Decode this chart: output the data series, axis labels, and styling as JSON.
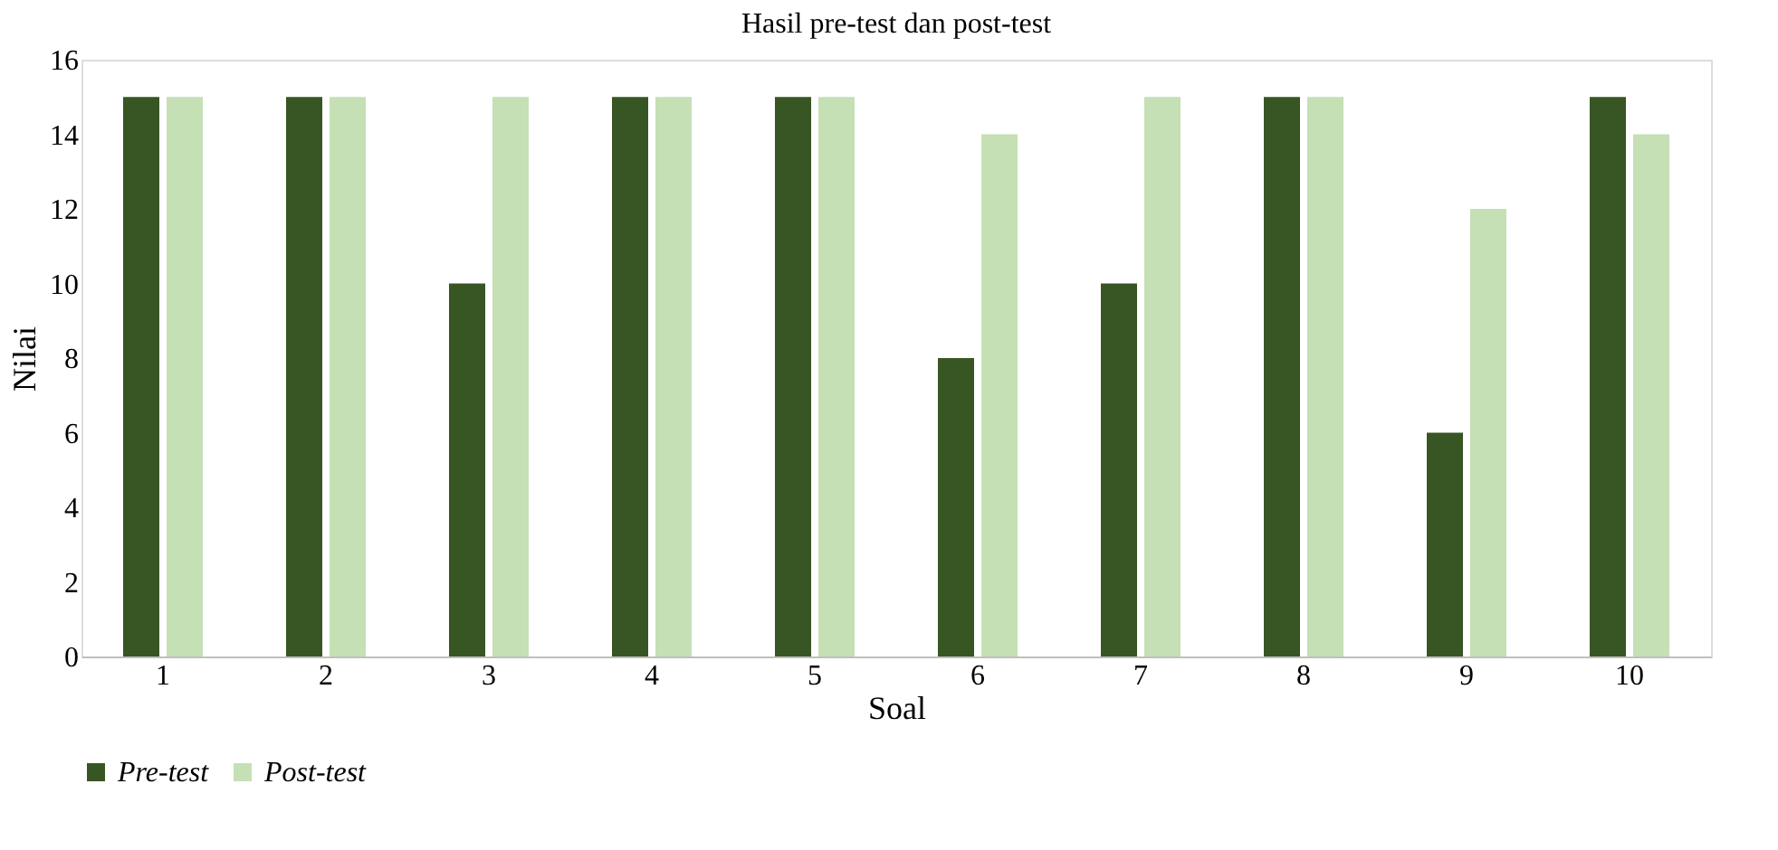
{
  "chart_data": {
    "type": "bar",
    "title": "Hasil pre-test dan post-test",
    "xlabel": "Soal",
    "ylabel": "Nilai",
    "categories": [
      "1",
      "2",
      "3",
      "4",
      "5",
      "6",
      "7",
      "8",
      "9",
      "10"
    ],
    "series": [
      {
        "name": "Pre-test",
        "color": "#375623",
        "values": [
          15,
          15,
          10,
          15,
          15,
          8,
          10,
          15,
          6,
          15
        ]
      },
      {
        "name": "Post-test",
        "color": "#c5e0b4",
        "values": [
          15,
          15,
          15,
          15,
          15,
          14,
          15,
          15,
          12,
          14
        ]
      }
    ],
    "ylim": [
      0,
      16
    ],
    "yticks": [
      0,
      2,
      4,
      6,
      8,
      10,
      12,
      14,
      16
    ],
    "grid": false,
    "legend": "bottom"
  }
}
